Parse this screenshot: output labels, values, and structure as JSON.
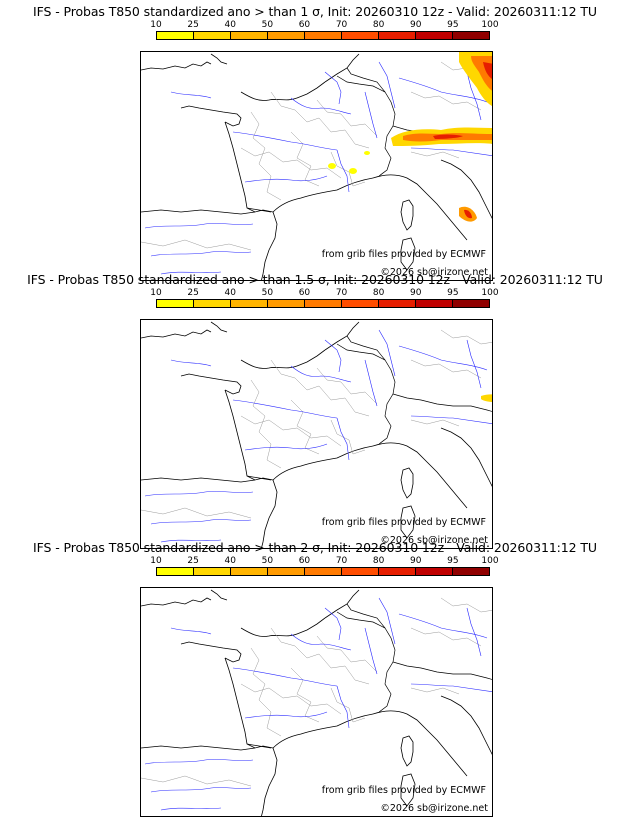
{
  "colorbar": {
    "ticks": [
      "10",
      "25",
      "40",
      "50",
      "60",
      "70",
      "80",
      "90",
      "95",
      "100"
    ],
    "colors": [
      "#ffff00",
      "#ffd700",
      "#ffb400",
      "#ff9a00",
      "#ff7a00",
      "#ff4d00",
      "#e61e00",
      "#c00000",
      "#900000"
    ]
  },
  "panels": [
    {
      "title": "IFS - Probas T850  standardized ano > than 1 σ, Init: 20260310 12z - Valid: 20260311:12 TU"
    },
    {
      "title": "IFS - Probas T850  standardized ano > than 1.5 σ, Init: 20260310 12z - Valid: 20260311:12 TU"
    },
    {
      "title": "IFS - Probas T850  standardized ano > than 2 σ, Init: 20260310 12z - Valid: 20260311:12 TU"
    }
  ],
  "credit_source": "from grib files provided by ECMWF",
  "credit_copyright": "©2026 sb@irizone.net"
}
